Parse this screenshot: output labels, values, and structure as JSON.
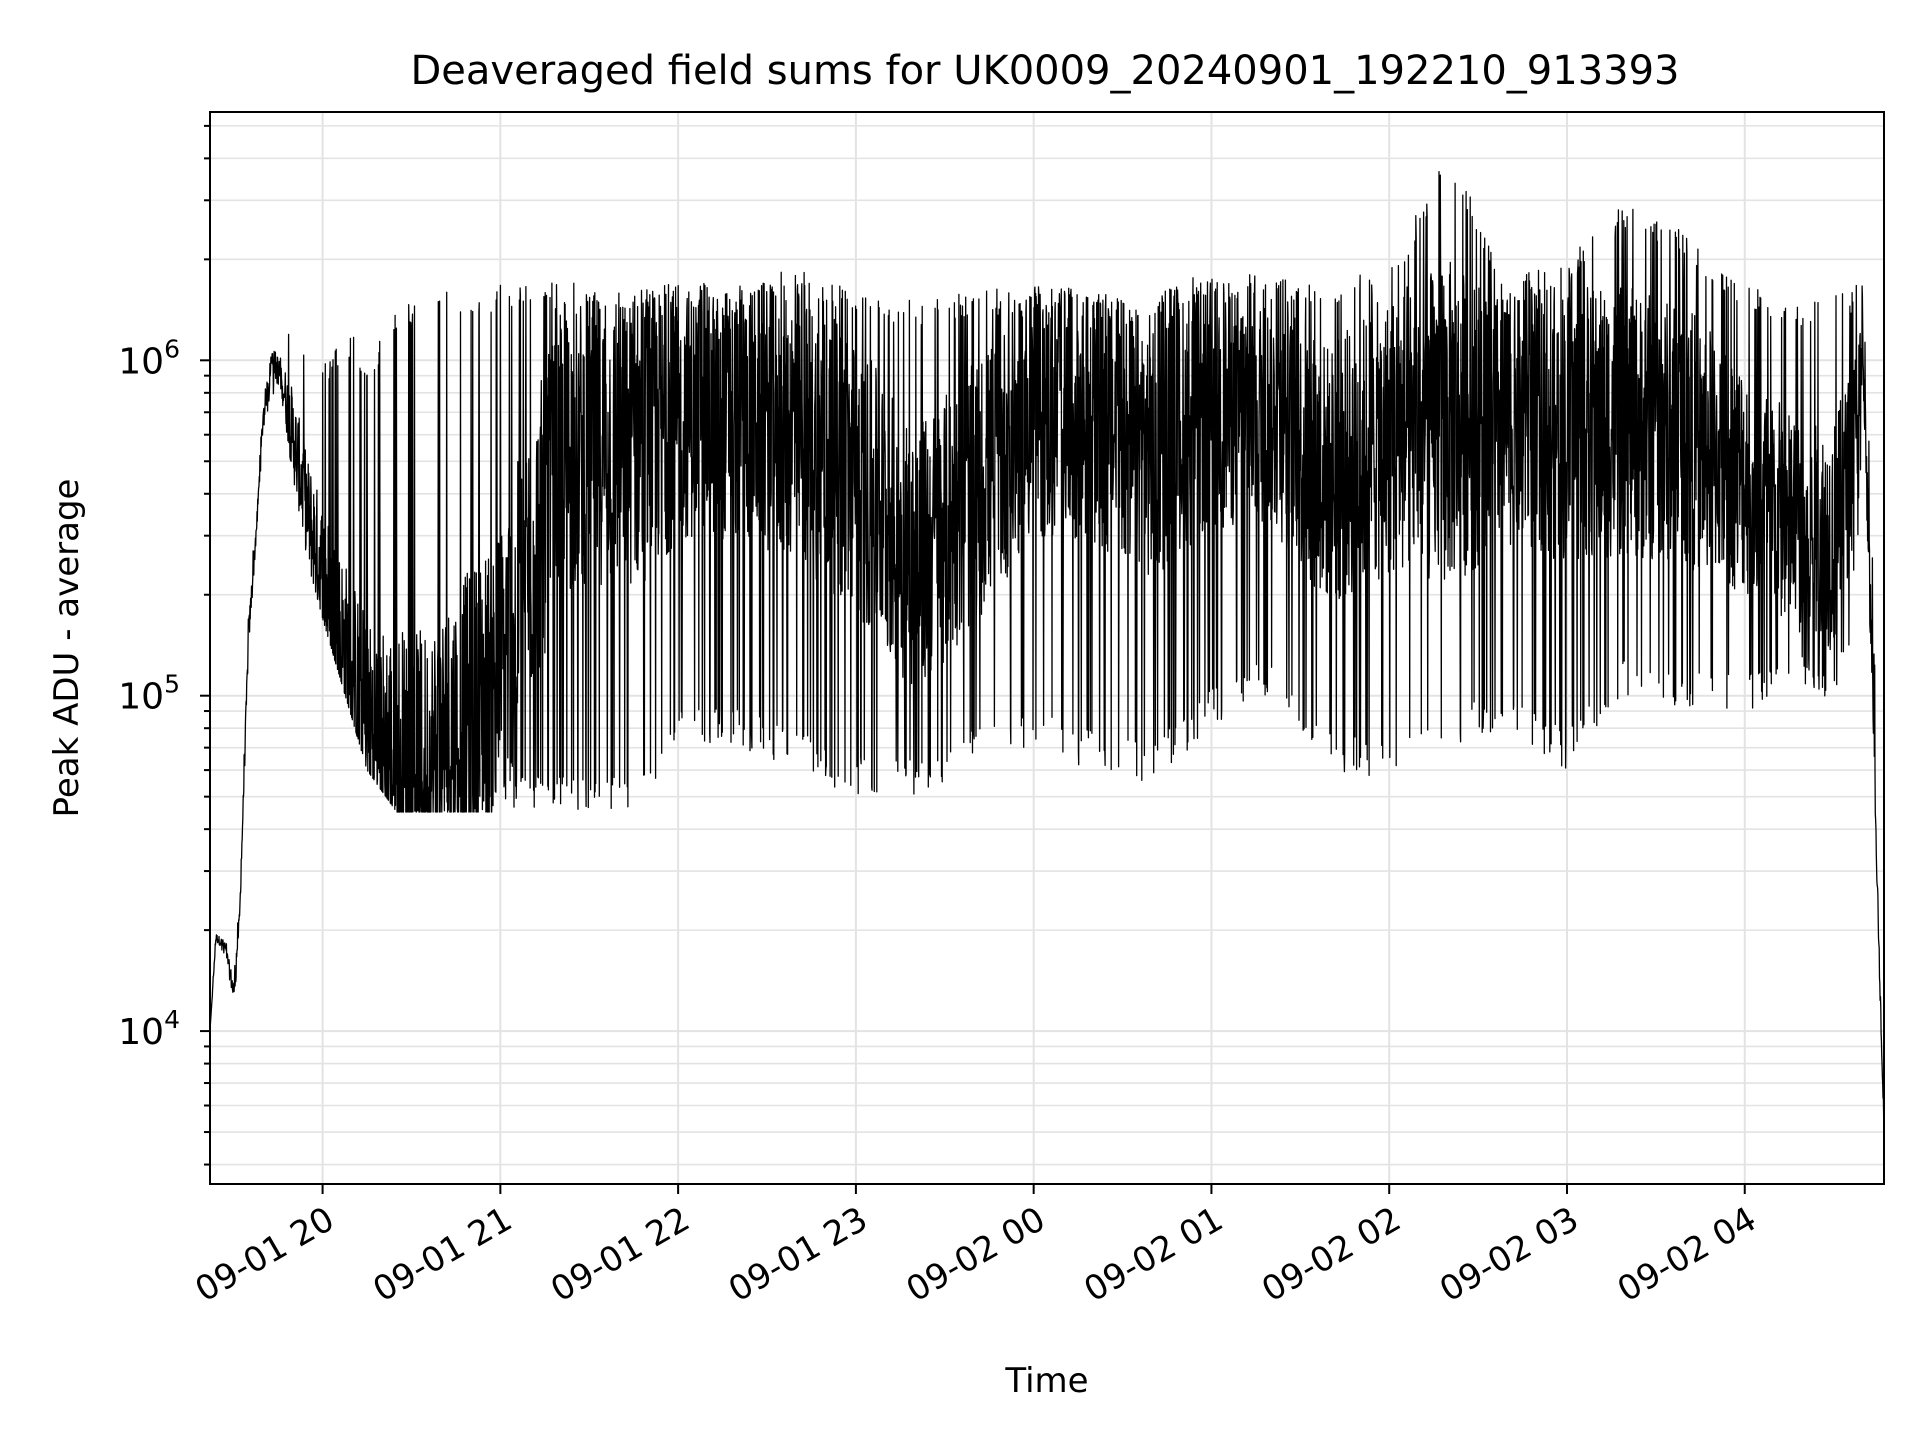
{
  "chart_data": {
    "type": "line",
    "title": "Deaveraged field sums for UK0009_20240901_192210_913393",
    "xlabel": "Time",
    "ylabel": "Peak ADU - average",
    "y_scale": "log",
    "ylim": [
      3500,
      5500000
    ],
    "xlim": [
      "2024-09-01 19:22",
      "2024-09-02 04:47"
    ],
    "x_tick_labels": [
      "09-01 20",
      "09-01 21",
      "09-01 22",
      "09-01 23",
      "09-02 00",
      "09-02 01",
      "09-02 02",
      "09-02 03",
      "09-02 04"
    ],
    "y_tick_labels": [
      {
        "base": "10",
        "exp": "4"
      },
      {
        "base": "10",
        "exp": "5"
      },
      {
        "base": "10",
        "exp": "6"
      }
    ],
    "grid": true,
    "line_color": "#000000",
    "series": [
      {
        "x": [
          "2024-09-01 19:22",
          "2024-09-01 19:24",
          "2024-09-01 19:27",
          "2024-09-01 19:30",
          "2024-09-01 19:32",
          "2024-09-01 19:35",
          "2024-09-01 19:38",
          "2024-09-01 19:40",
          "2024-09-01 19:43",
          "2024-09-01 19:46",
          "2024-09-01 19:50",
          "2024-09-01 19:55",
          "2024-09-01 20:00",
          "2024-09-01 20:05",
          "2024-09-01 20:10",
          "2024-09-01 20:15",
          "2024-09-01 20:20",
          "2024-09-01 20:25",
          "2024-09-01 20:30",
          "2024-09-01 20:35",
          "2024-09-01 20:40",
          "2024-09-01 20:45",
          "2024-09-01 20:50",
          "2024-09-01 21:00",
          "2024-09-01 21:10",
          "2024-09-01 21:20",
          "2024-09-01 21:30",
          "2024-09-01 21:40",
          "2024-09-01 21:50",
          "2024-09-01 22:00",
          "2024-09-01 22:20",
          "2024-09-01 22:40",
          "2024-09-01 23:00",
          "2024-09-01 23:20",
          "2024-09-01 23:40",
          "2024-09-02 00:00",
          "2024-09-02 00:20",
          "2024-09-02 00:40",
          "2024-09-02 01:00",
          "2024-09-02 01:20",
          "2024-09-02 01:40",
          "2024-09-02 02:00",
          "2024-09-02 02:20",
          "2024-09-02 02:40",
          "2024-09-02 03:00",
          "2024-09-02 03:20",
          "2024-09-02 03:40",
          "2024-09-02 04:00",
          "2024-09-02 04:20",
          "2024-09-02 04:30",
          "2024-09-02 04:36",
          "2024-09-02 04:40",
          "2024-09-02 04:43",
          "2024-09-02 04:45",
          "2024-09-02 04:47"
        ],
        "values": [
          10000,
          19000,
          18000,
          13000,
          22000,
          150000,
          350000,
          700000,
          1000000,
          900000,
          600000,
          350000,
          230000,
          160000,
          110000,
          80000,
          70000,
          65000,
          60000,
          60000,
          70000,
          80000,
          90000,
          120000,
          250000,
          500000,
          600000,
          550000,
          600000,
          700000,
          700000,
          650000,
          450000,
          250000,
          400000,
          700000,
          650000,
          550000,
          750000,
          700000,
          450000,
          600000,
          650000,
          650000,
          650000,
          650000,
          600000,
          450000,
          300000,
          300000,
          500000,
          1000000,
          110000,
          20000,
          5000
        ],
        "envelope_low": [
          10000,
          18000,
          17000,
          11000,
          20000,
          140000,
          300000,
          600000,
          800000,
          700000,
          450000,
          250000,
          170000,
          120000,
          85000,
          60000,
          52000,
          45000,
          45000,
          45000,
          45000,
          45000,
          45000,
          45000,
          45000,
          45000,
          45000,
          45000,
          45000,
          70000,
          70000,
          60000,
          50000,
          50000,
          60000,
          70000,
          60000,
          55000,
          80000,
          100000,
          60000,
          55000,
          70000,
          80000,
          60000,
          100000,
          90000,
          90000,
          100000,
          90000,
          150000,
          500000,
          110000,
          20000,
          5000
        ],
        "envelope_high": [
          10000,
          20000,
          19000,
          15000,
          25000,
          200000,
          400000,
          800000,
          1100000,
          1100000,
          1400000,
          1000000,
          1000000,
          1100000,
          1200000,
          1000000,
          1200000,
          1400000,
          1500000,
          1500000,
          1600000,
          1600000,
          1600000,
          1700000,
          1700000,
          1700000,
          1700000,
          1700000,
          1700000,
          1700000,
          1700000,
          1900000,
          1600000,
          1500000,
          1600000,
          1700000,
          1600000,
          1600000,
          1900000,
          1800000,
          1700000,
          1900000,
          4200000,
          1800000,
          2000000,
          3000000,
          2400000,
          1700000,
          1500000,
          1600000,
          1600000,
          1800000,
          300000,
          40000,
          5000
        ]
      }
    ]
  }
}
